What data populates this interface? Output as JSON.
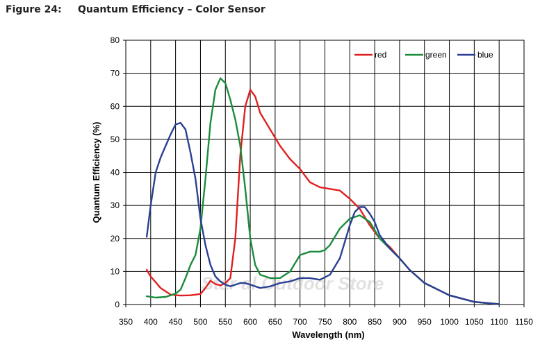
{
  "figure": {
    "label": "Figure 24:",
    "title": "Quantum Efficiency – Color Sensor"
  },
  "watermark": "Star al Outdoor Store",
  "chart_data": {
    "type": "line",
    "title": "Quantum Efficiency – Color Sensor",
    "xlabel": "Wavelength (nm)",
    "ylabel": "Quantum Efficiency (%)",
    "xlim": [
      350,
      1150
    ],
    "ylim": [
      0,
      80
    ],
    "xticks": [
      350,
      400,
      450,
      500,
      550,
      600,
      650,
      700,
      750,
      800,
      850,
      900,
      950,
      1000,
      1050,
      1100,
      1150
    ],
    "yticks": [
      0,
      10,
      20,
      30,
      40,
      50,
      60,
      70,
      80
    ],
    "grid": true,
    "legend_position": "top-right",
    "series": [
      {
        "name": "red",
        "color": "#e02020",
        "points": [
          [
            392,
            10.5
          ],
          [
            400,
            8.5
          ],
          [
            420,
            5
          ],
          [
            440,
            3
          ],
          [
            460,
            2.7
          ],
          [
            480,
            2.8
          ],
          [
            500,
            3.2
          ],
          [
            510,
            5
          ],
          [
            520,
            7.2
          ],
          [
            530,
            6.2
          ],
          [
            540,
            5.8
          ],
          [
            550,
            6.5
          ],
          [
            560,
            8
          ],
          [
            570,
            20
          ],
          [
            580,
            45
          ],
          [
            590,
            60
          ],
          [
            600,
            65
          ],
          [
            610,
            63
          ],
          [
            620,
            58
          ],
          [
            640,
            53
          ],
          [
            660,
            48
          ],
          [
            680,
            44
          ],
          [
            700,
            41
          ],
          [
            720,
            37
          ],
          [
            740,
            35.5
          ],
          [
            760,
            35
          ],
          [
            780,
            34.5
          ],
          [
            800,
            32
          ],
          [
            820,
            29
          ],
          [
            840,
            24
          ],
          [
            860,
            20
          ],
          [
            880,
            17.5
          ],
          [
            900,
            14
          ],
          [
            920,
            10.5
          ],
          [
            950,
            6.5
          ],
          [
            1000,
            2.8
          ],
          [
            1050,
            0.8
          ],
          [
            1100,
            0.1
          ]
        ]
      },
      {
        "name": "green",
        "color": "#1a8c3c",
        "points": [
          [
            392,
            2.5
          ],
          [
            410,
            2.1
          ],
          [
            430,
            2.3
          ],
          [
            450,
            3.3
          ],
          [
            460,
            4.5
          ],
          [
            470,
            8
          ],
          [
            480,
            12
          ],
          [
            490,
            15
          ],
          [
            500,
            23
          ],
          [
            510,
            38
          ],
          [
            520,
            55
          ],
          [
            530,
            65
          ],
          [
            540,
            68.5
          ],
          [
            550,
            67
          ],
          [
            560,
            62
          ],
          [
            570,
            56
          ],
          [
            580,
            48
          ],
          [
            590,
            35
          ],
          [
            600,
            20
          ],
          [
            610,
            12
          ],
          [
            620,
            9
          ],
          [
            640,
            8
          ],
          [
            660,
            8
          ],
          [
            680,
            10
          ],
          [
            700,
            15
          ],
          [
            720,
            16
          ],
          [
            740,
            16
          ],
          [
            750,
            16.5
          ],
          [
            760,
            18
          ],
          [
            780,
            23
          ],
          [
            800,
            26
          ],
          [
            820,
            27
          ],
          [
            840,
            25
          ],
          [
            860,
            20
          ],
          [
            880,
            17
          ],
          [
            900,
            14
          ],
          [
            920,
            10.5
          ],
          [
            950,
            6.5
          ],
          [
            1000,
            2.8
          ],
          [
            1050,
            0.8
          ],
          [
            1100,
            0.1
          ]
        ]
      },
      {
        "name": "blue",
        "color": "#2b3f93",
        "points": [
          [
            392,
            20.5
          ],
          [
            400,
            30
          ],
          [
            410,
            40
          ],
          [
            420,
            44.5
          ],
          [
            430,
            48
          ],
          [
            440,
            51.5
          ],
          [
            450,
            54.5
          ],
          [
            460,
            55
          ],
          [
            470,
            53
          ],
          [
            480,
            46
          ],
          [
            490,
            38
          ],
          [
            500,
            26
          ],
          [
            510,
            18
          ],
          [
            520,
            12
          ],
          [
            530,
            8.5
          ],
          [
            540,
            7
          ],
          [
            550,
            6
          ],
          [
            560,
            5.5
          ],
          [
            570,
            6
          ],
          [
            580,
            6.5
          ],
          [
            590,
            6.5
          ],
          [
            600,
            6
          ],
          [
            620,
            5
          ],
          [
            640,
            5.5
          ],
          [
            660,
            6.5
          ],
          [
            680,
            7
          ],
          [
            700,
            8
          ],
          [
            720,
            8
          ],
          [
            740,
            7.5
          ],
          [
            760,
            9
          ],
          [
            780,
            14
          ],
          [
            790,
            19
          ],
          [
            800,
            24
          ],
          [
            810,
            28
          ],
          [
            820,
            29.5
          ],
          [
            830,
            29.5
          ],
          [
            840,
            27.5
          ],
          [
            850,
            25
          ],
          [
            860,
            21
          ],
          [
            880,
            17
          ],
          [
            900,
            14
          ],
          [
            920,
            10.5
          ],
          [
            950,
            6.5
          ],
          [
            1000,
            2.8
          ],
          [
            1050,
            0.8
          ],
          [
            1100,
            0.1
          ]
        ]
      }
    ]
  }
}
